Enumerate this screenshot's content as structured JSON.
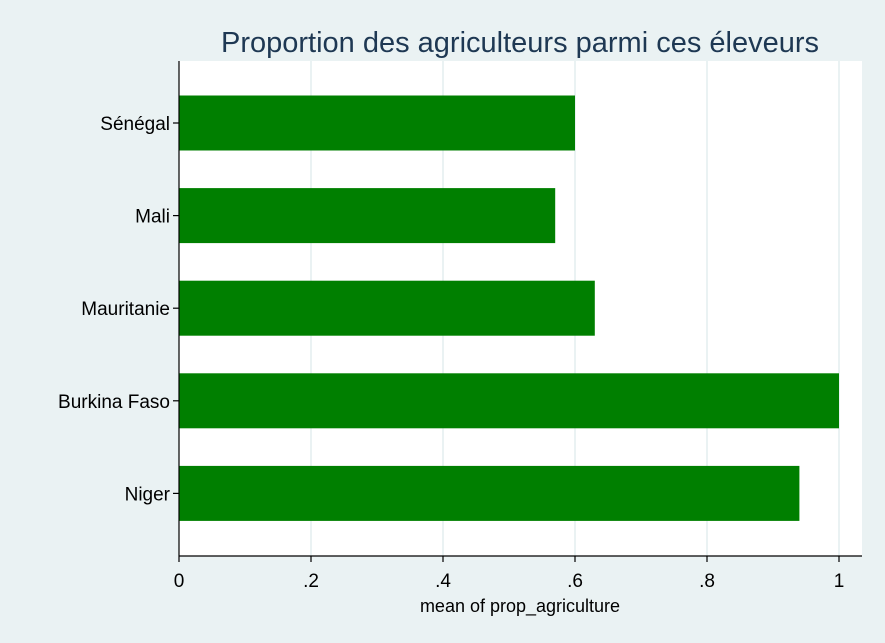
{
  "chart_data": {
    "type": "bar",
    "orientation": "horizontal",
    "title": "Proportion des agriculteurs parmi ces éleveurs",
    "xlabel": "mean of prop_agriculture",
    "ylabel": "",
    "categories": [
      "Sénégal",
      "Mali",
      "Mauritanie",
      "Burkina Faso",
      "Niger"
    ],
    "values": [
      0.6,
      0.57,
      0.63,
      1.0,
      0.94
    ],
    "xlim": [
      0,
      1
    ],
    "ticks": [
      0,
      0.2,
      0.4,
      0.6,
      0.8,
      1
    ],
    "tick_labels": [
      "0",
      ".2",
      ".4",
      ".6",
      ".8",
      "1"
    ],
    "grid": "vertical",
    "legend": "none",
    "colors": {
      "bar": "#007f00",
      "background": "#eaf2f3",
      "plot_background": "#ffffff",
      "title": "#1e3853",
      "grid": "#eaf2f3"
    }
  }
}
